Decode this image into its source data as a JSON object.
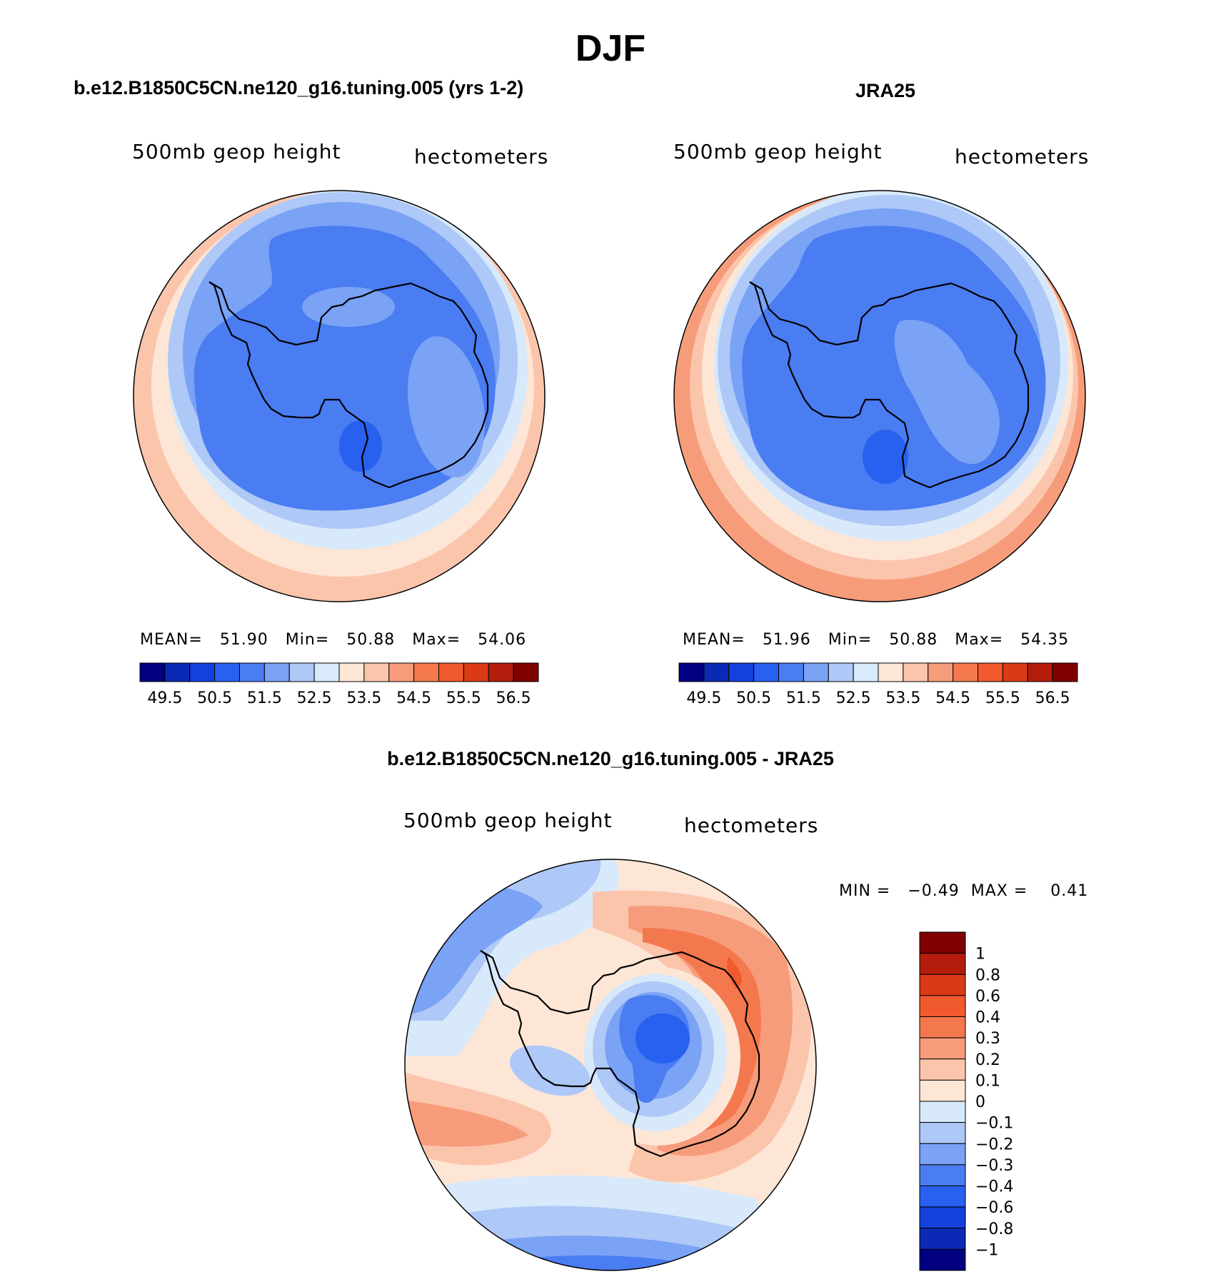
{
  "page_title": "DJF",
  "levels_abs": [
    "49.5",
    "50.5",
    "51.5",
    "52.5",
    "53.5",
    "54.5",
    "55.5",
    "56.5"
  ],
  "colors_abs": [
    "#000080",
    "#0a2ab5",
    "#1440dc",
    "#2860ef",
    "#4a7cf2",
    "#7aa2f5",
    "#aec8f7",
    "#d7e9fa",
    "#fde6d6",
    "#fbc5ac",
    "#f79c7b",
    "#f4784e",
    "#f15a2d",
    "#db3a16",
    "#b41d0c",
    "#800000"
  ],
  "panel_left": {
    "title": "b.e12.B1850C5CN.ne120_g16.tuning.005 (yrs 1-2)",
    "var_label": "500mb  geop  height",
    "units": "hectometers",
    "stats": {
      "mean_label": "MEAN=",
      "mean": "51.90",
      "min_label": "Min=",
      "min": "50.88",
      "max_label": "Max=",
      "max": "54.06"
    }
  },
  "panel_right": {
    "title": "JRA25",
    "var_label": "500mb  geop  height",
    "units": "hectometers",
    "stats": {
      "mean_label": "MEAN=",
      "mean": "51.96",
      "min_label": "Min=",
      "min": "50.88",
      "max_label": "Max=",
      "max": "54.35"
    }
  },
  "panel_diff": {
    "title": "b.e12.B1850C5CN.ne120_g16.tuning.005 - JRA25",
    "var_label": "500mb  geop  height",
    "units": "hectometers",
    "minmax_text": "MIN =   −0.49  MAX =    0.41",
    "levels": [
      "1",
      "0.8",
      "0.6",
      "0.4",
      "0.3",
      "0.2",
      "0.1",
      "0",
      "−0.1",
      "−0.2",
      "−0.3",
      "−0.4",
      "−0.6",
      "−0.8",
      "−1"
    ],
    "colors": [
      "#800000",
      "#b41d0c",
      "#db3a16",
      "#f15a2d",
      "#f4784e",
      "#f79c7b",
      "#fbc5ac",
      "#fde6d6",
      "#d7e9fa",
      "#aec8f7",
      "#7aa2f5",
      "#4a7cf2",
      "#2860ef",
      "#1440dc",
      "#0a2ab5",
      "#000080"
    ]
  }
}
